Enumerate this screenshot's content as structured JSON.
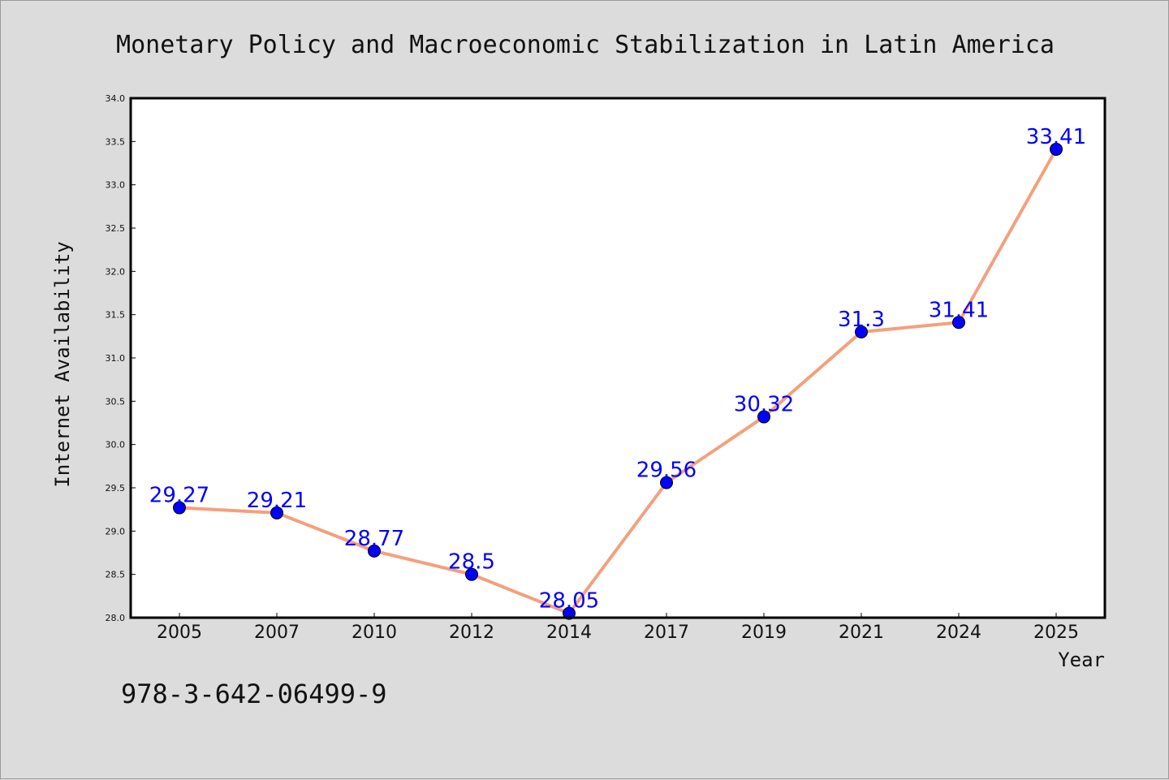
{
  "chart_data": {
    "type": "line",
    "title": "Monetary Policy and Macroeconomic Stabilization in Latin America",
    "xlabel": "Year",
    "ylabel": "Internet Availability",
    "categories": [
      "2005",
      "2007",
      "2010",
      "2012",
      "2014",
      "2017",
      "2019",
      "2021",
      "2024",
      "2025"
    ],
    "series": [
      {
        "values": [
          29.27,
          29.21,
          28.77,
          28.5,
          28.05,
          29.56,
          30.32,
          31.3,
          31.41,
          33.41
        ],
        "labels": [
          "29.27",
          "29.21",
          "28.77",
          "28.5",
          "28.05",
          "29.56",
          "30.32",
          "31.3",
          "31.41",
          "33.41"
        ],
        "line_color": "#f4a07c",
        "marker_color": "#0000ff"
      }
    ],
    "ylim": [
      28.0,
      34.0
    ],
    "yticks": [
      "28.0",
      "28.5",
      "29.0",
      "29.5",
      "30.0",
      "30.5",
      "31.0",
      "31.5",
      "32.0",
      "32.5",
      "33.0",
      "33.5",
      "34.0"
    ],
    "grid": false,
    "legend": "none"
  },
  "footnote": "978-3-642-06499-9",
  "colors": {
    "background": "#dcdcdc",
    "plot_background": "#ffffff",
    "data_label": "#0000ff"
  }
}
